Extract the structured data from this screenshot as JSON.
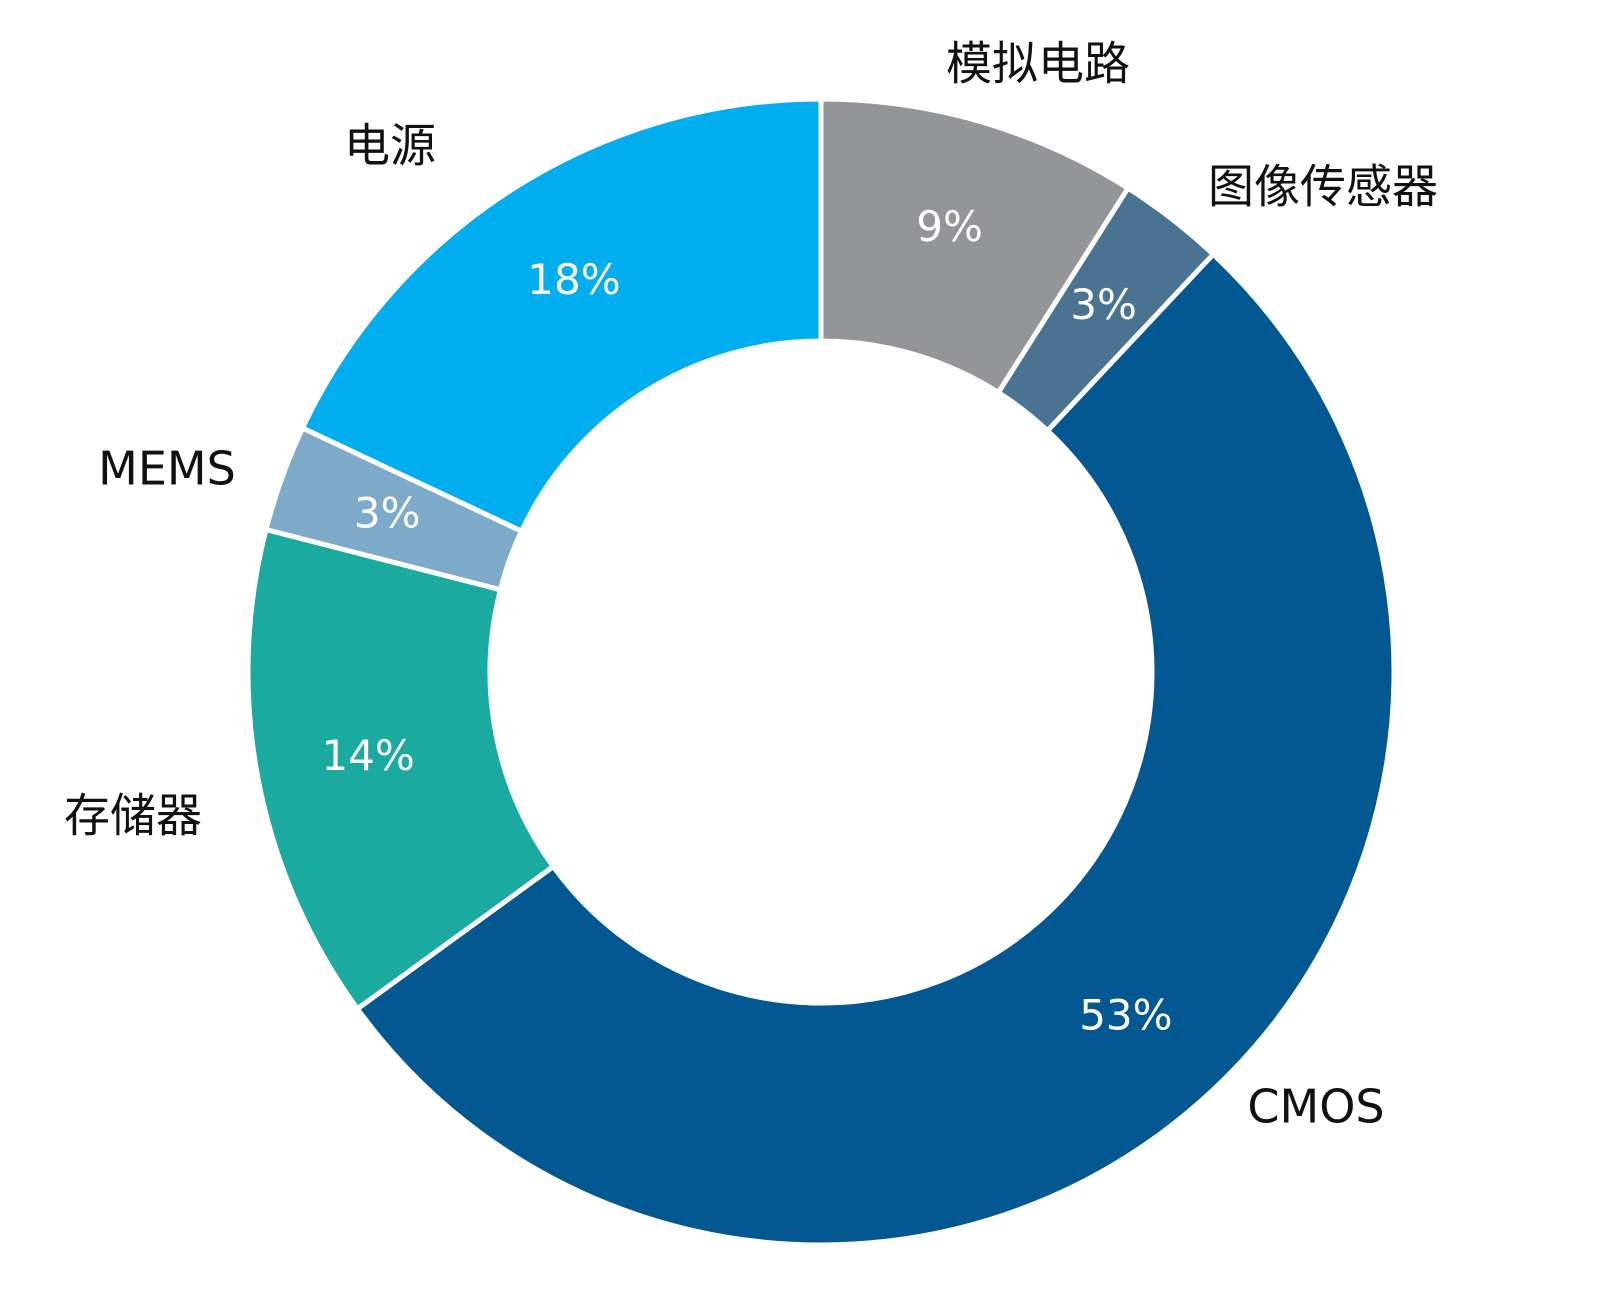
{
  "chart_data": {
    "type": "donut",
    "categories": [
      "模拟电路",
      "图像传感器",
      "CMOS",
      "存储器",
      "MEMS",
      "电源"
    ],
    "values": [
      9,
      3,
      53,
      14,
      3,
      18
    ],
    "value_labels": [
      "9%",
      "3%",
      "53%",
      "14%",
      "3%",
      "18%"
    ],
    "colors": [
      "#939598",
      "#4a7291",
      "#035891",
      "#1aaa9f",
      "#7eaac9",
      "#00aeef"
    ]
  }
}
